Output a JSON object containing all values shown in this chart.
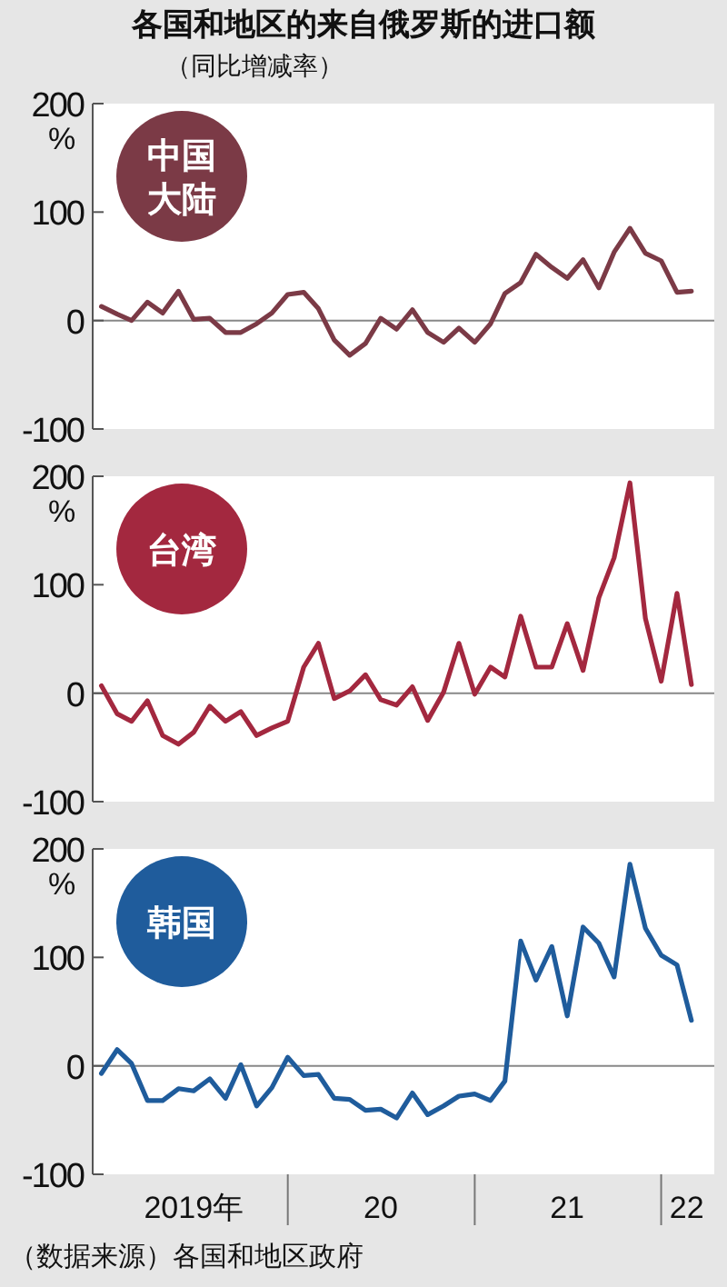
{
  "chart_data": [
    {
      "type": "line",
      "title": "各国和地区的来自俄罗斯的进口额",
      "subtitle": "（同比增减率）",
      "ylabel": "%",
      "tick_labels": "y",
      "x": [
        "2019-01",
        "2019-02",
        "2019-03",
        "2019-04",
        "2019-05",
        "2019-06",
        "2019-07",
        "2019-08",
        "2019-09",
        "2019-10",
        "2019-11",
        "2019-12",
        "2020-01",
        "2020-02",
        "2020-03",
        "2020-04",
        "2020-05",
        "2020-06",
        "2020-07",
        "2020-08",
        "2020-09",
        "2020-10",
        "2020-11",
        "2020-12",
        "2021-01",
        "2021-02",
        "2021-03",
        "2021-04",
        "2021-05",
        "2021-06",
        "2021-07",
        "2021-08",
        "2021-09",
        "2021-10",
        "2021-11",
        "2021-12",
        "2022-01",
        "2022-02",
        "2022-03"
      ],
      "xlim": [
        "2018-12-15",
        "2022-04-15"
      ],
      "ylim": [
        -100,
        200
      ],
      "yticks": [
        -100,
        0,
        100,
        200
      ],
      "ref_lines": [
        {
          "axis": "y",
          "value": 0,
          "color": "#888888"
        }
      ],
      "series": [
        {
          "name": "中国大陆",
          "color": "#7b3a46",
          "values": [
            13,
            6,
            0,
            17,
            7,
            27,
            1,
            2,
            -11,
            -11,
            -3,
            7,
            24,
            26,
            11,
            -18,
            -32,
            -21,
            2,
            -8,
            10,
            -11,
            -20,
            -7,
            -20,
            -3,
            25,
            35,
            61,
            49,
            39,
            56,
            30,
            63,
            85,
            62,
            55,
            26,
            27
          ]
        }
      ]
    },
    {
      "type": "line",
      "ylabel": "%",
      "tick_labels": "y",
      "x": [
        "2019-01",
        "2019-02",
        "2019-03",
        "2019-04",
        "2019-05",
        "2019-06",
        "2019-07",
        "2019-08",
        "2019-09",
        "2019-10",
        "2019-11",
        "2019-12",
        "2020-01",
        "2020-02",
        "2020-03",
        "2020-04",
        "2020-05",
        "2020-06",
        "2020-07",
        "2020-08",
        "2020-09",
        "2020-10",
        "2020-11",
        "2020-12",
        "2021-01",
        "2021-02",
        "2021-03",
        "2021-04",
        "2021-05",
        "2021-06",
        "2021-07",
        "2021-08",
        "2021-09",
        "2021-10",
        "2021-11",
        "2021-12",
        "2022-01",
        "2022-02",
        "2022-03"
      ],
      "xlim": [
        "2018-12-15",
        "2022-04-15"
      ],
      "ylim": [
        -100,
        200
      ],
      "yticks": [
        -100,
        0,
        100,
        200
      ],
      "ref_lines": [
        {
          "axis": "y",
          "value": 0,
          "color": "#888888"
        }
      ],
      "series": [
        {
          "name": "台湾",
          "color": "#a3283f",
          "values": [
            7,
            -19,
            -26,
            -7,
            -39,
            -47,
            -36,
            -12,
            -26,
            -17,
            -39,
            -32,
            -26,
            24,
            46,
            -5,
            2,
            17,
            -6,
            -11,
            6,
            -25,
            1,
            46,
            -1,
            24,
            15,
            71,
            24,
            24,
            64,
            21,
            88,
            125,
            194,
            69,
            11,
            92,
            8
          ]
        }
      ]
    },
    {
      "type": "line",
      "ylabel": "%",
      "x": [
        "2019-01",
        "2019-02",
        "2019-03",
        "2019-04",
        "2019-05",
        "2019-06",
        "2019-07",
        "2019-08",
        "2019-09",
        "2019-10",
        "2019-11",
        "2019-12",
        "2020-01",
        "2020-02",
        "2020-03",
        "2020-04",
        "2020-05",
        "2020-06",
        "2020-07",
        "2020-08",
        "2020-09",
        "2020-10",
        "2020-11",
        "2020-12",
        "2021-01",
        "2021-02",
        "2021-03",
        "2021-04",
        "2021-05",
        "2021-06",
        "2021-07",
        "2021-08",
        "2021-09",
        "2021-10",
        "2021-11",
        "2021-12",
        "2022-01",
        "2022-02",
        "2022-03"
      ],
      "xlim": [
        "2018-12-15",
        "2022-04-15"
      ],
      "ylim": [
        -100,
        200
      ],
      "yticks": [
        -100,
        0,
        100,
        200
      ],
      "xticks": [
        {
          "value": "2019-07-01",
          "label": "2019年"
        },
        {
          "value": "2020-01-01",
          "label": null
        },
        {
          "value": "2020-07-01",
          "label": "20"
        },
        {
          "value": "2021-01-01",
          "label": null
        },
        {
          "value": "2021-07-01",
          "label": "21"
        },
        {
          "value": "2022-01-01",
          "label": null
        },
        {
          "value": "2022-02-20",
          "label": "22"
        }
      ],
      "ref_lines": [
        {
          "axis": "y",
          "value": 0,
          "color": "#888888"
        }
      ],
      "annotations": [
        "（数据来源）各国和地区政府"
      ],
      "series": [
        {
          "name": "韩国",
          "color": "#1f5c9c",
          "values": [
            -7,
            15,
            2,
            -32,
            -32,
            -21,
            -23,
            -12,
            -30,
            1,
            -37,
            -20,
            8,
            -9,
            -8,
            -30,
            -31,
            -41,
            -40,
            -48,
            -25,
            -45,
            -37,
            -28,
            -26,
            -32,
            -14,
            115,
            79,
            110,
            46,
            128,
            113,
            82,
            186,
            127,
            102,
            93,
            42
          ]
        }
      ]
    }
  ]
}
